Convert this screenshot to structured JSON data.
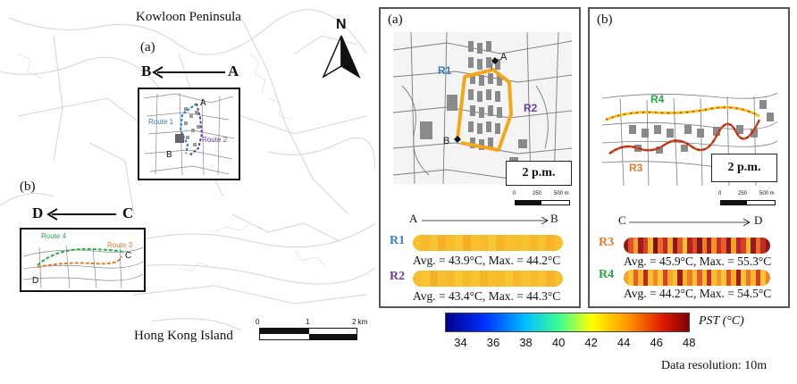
{
  "overview": {
    "north_label": "N",
    "kowloon_label": "Kowloon Peninsula",
    "hk_island_label": "Hong Kong Island",
    "inset_a": {
      "label": "(a)",
      "dir_from": "A",
      "dir_to": "B",
      "route1": "Route 1",
      "route2": "Route 2",
      "pt_a": "A",
      "pt_b": "B"
    },
    "inset_b": {
      "label": "(b)",
      "dir_from": "C",
      "dir_to": "D",
      "route3": "Route 3",
      "route4": "Route 4",
      "pt_c": "C",
      "pt_d": "D"
    },
    "scale": {
      "t0": "0",
      "t1": "1",
      "t2": "2 km"
    }
  },
  "panel_a": {
    "label": "(a)",
    "time": "2 p.m.",
    "pt_a": "A",
    "pt_b": "B",
    "r1": "R1",
    "r2": "R2",
    "scale": {
      "t0": "0",
      "t1": "250",
      "t2": "500 m"
    },
    "axis_from": "A",
    "axis_to": "B",
    "routes": [
      {
        "name": "R1",
        "color": "#3a7fc1",
        "stat": "Avg. = 43.9°C, Max. = 44.2°C",
        "colors": [
          "#f8c030",
          "#f7b82c",
          "#f8c232",
          "#f6b02a",
          "#f7bc2e",
          "#f8c434",
          "#f5ae29",
          "#f8c030",
          "#f7ba2d",
          "#f8c636",
          "#f6b42b",
          "#f8c030",
          "#f7bd2f",
          "#f8c333",
          "#f7b82c",
          "#f8c131",
          "#f6b32b",
          "#f8c030"
        ]
      },
      {
        "name": "R2",
        "color": "#6a3c9a",
        "stat": "Avg. = 43.4°C, Max. = 44.3°C",
        "colors": [
          "#f7bd2f",
          "#f8c434",
          "#f6b12a",
          "#f8c030",
          "#f7b92d",
          "#f8c636",
          "#f7bb2e",
          "#f8c232",
          "#f6b42b",
          "#f8c030",
          "#f7bc2e",
          "#f8c535",
          "#f7b72c",
          "#f8c131",
          "#f7ba2d",
          "#f8c333",
          "#f6b32b",
          "#f8c030"
        ]
      }
    ]
  },
  "panel_b": {
    "label": "(b)",
    "time": "2 p.m.",
    "r3": "R3",
    "r4": "R4",
    "scale": {
      "t0": "0",
      "t1": "250",
      "t2": "500 m"
    },
    "axis_from": "C",
    "axis_to": "D",
    "routes": [
      {
        "name": "R3",
        "color": "#e07a30",
        "stat": "Avg. = 45.9°C, Max. = 55.3°C",
        "colors": [
          "#8b1a1a",
          "#e0502a",
          "#f2a030",
          "#9e1e1e",
          "#d8402a",
          "#f6b82e",
          "#7a1414",
          "#e86a2a",
          "#c02a24",
          "#f4a82c",
          "#8e1818",
          "#e2582a",
          "#f8c032",
          "#b22424",
          "#de4c2a",
          "#7e1616",
          "#ec7c2a",
          "#a21e1e",
          "#f0962c",
          "#c82e26",
          "#e65e2a",
          "#8a1a1a",
          "#f2a02e",
          "#b82626",
          "#d4402a",
          "#f6b430",
          "#941c1c",
          "#e8702a",
          "#c02a24",
          "#8b1a1a"
        ]
      },
      {
        "name": "R4",
        "color": "#2aa84a",
        "stat": "Avg. = 44.2°C, Max. = 54.5°C",
        "colors": [
          "#f2a02e",
          "#f8c434",
          "#e65e2a",
          "#f6b62e",
          "#b82626",
          "#f8c030",
          "#ee8a2c",
          "#f8c636",
          "#d8442a",
          "#f4a82c",
          "#f8c232",
          "#9e1e1e",
          "#f6b42e",
          "#ec7c2a",
          "#f8c434",
          "#e2582a",
          "#f6ba2e",
          "#c42c26",
          "#f8c030",
          "#f0962c",
          "#f8c636",
          "#de502a",
          "#f4ae2c",
          "#a21e1e",
          "#f8c232",
          "#ea742a",
          "#f6b830",
          "#d2402a",
          "#f8c434",
          "#ee862c"
        ]
      }
    ]
  },
  "colorbar": {
    "title": "PST (°C)",
    "ticks": [
      "34",
      "36",
      "38",
      "40",
      "42",
      "44",
      "46",
      "48"
    ],
    "min": 33,
    "max": 48
  },
  "footer": {
    "resolution": "Data resolution: 10m"
  }
}
